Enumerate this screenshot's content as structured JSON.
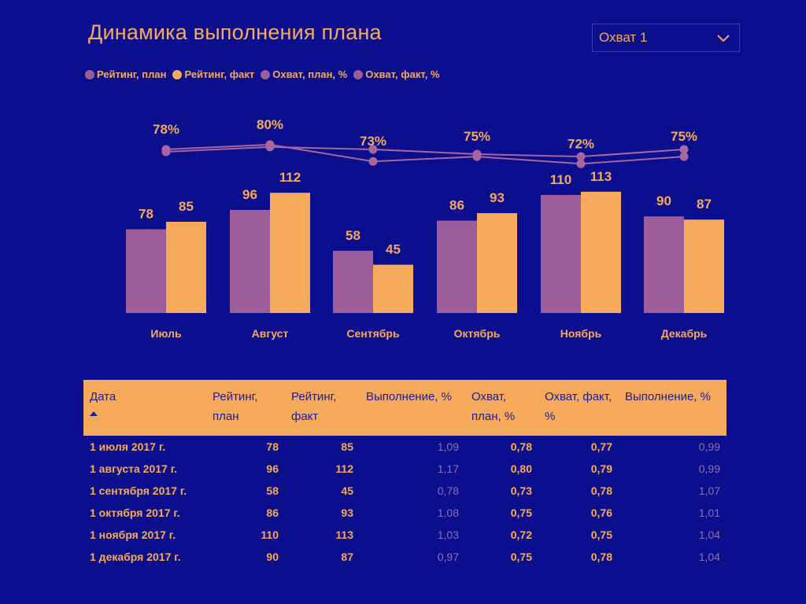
{
  "title": "Динамика выполнения плана",
  "dropdown": {
    "selected": "Охват 1"
  },
  "colors": {
    "plan": "#9c5e98",
    "fact": "#f7a95c",
    "bg": "#0b0f8e"
  },
  "legend": [
    {
      "label": "Рейтинг, план",
      "color": "#9c5e98"
    },
    {
      "label": "Рейтинг, факт",
      "color": "#f7a95c"
    },
    {
      "label": "Охват, план, %",
      "color": "#9c5e98"
    },
    {
      "label": "Охват, факт, %",
      "color": "#9c5e98"
    }
  ],
  "chart_data": {
    "type": "bar",
    "title": "Динамика выполнения плана",
    "categories": [
      "Июль",
      "Август",
      "Сентябрь",
      "Октябрь",
      "Ноябрь",
      "Декабрь"
    ],
    "series": [
      {
        "name": "Рейтинг, план",
        "values": [
          78,
          96,
          58,
          86,
          110,
          90
        ]
      },
      {
        "name": "Рейтинг, факт",
        "values": [
          85,
          112,
          45,
          93,
          113,
          87
        ]
      }
    ],
    "line_series": [
      {
        "name": "Охват, план, %",
        "values": [
          0.78,
          0.8,
          0.73,
          0.75,
          0.72,
          0.75
        ]
      },
      {
        "name": "Охват, факт, %",
        "values": [
          0.77,
          0.79,
          0.78,
          0.76,
          0.75,
          0.78
        ]
      }
    ],
    "line_labels": [
      "78%",
      "80%",
      "73%",
      "75%",
      "72%",
      "75%"
    ],
    "ylim": [
      0,
      120
    ]
  },
  "table": {
    "headers": [
      "Дата",
      "Рейтинг, план",
      "Рейтинг, факт",
      "Выполнение, %",
      "Охват, план, %",
      "Охват, факт, %",
      "Выполнение, %"
    ],
    "rows": [
      [
        "1 июля 2017 г.",
        "78",
        "85",
        "1,09",
        "0,78",
        "0,77",
        "0,99"
      ],
      [
        "1 августа 2017 г.",
        "96",
        "112",
        "1,17",
        "0,80",
        "0,79",
        "0,99"
      ],
      [
        "1 сентября 2017 г.",
        "58",
        "45",
        "0,78",
        "0,73",
        "0,78",
        "1,07"
      ],
      [
        "1 октября 2017 г.",
        "86",
        "93",
        "1,08",
        "0,75",
        "0,76",
        "1,01"
      ],
      [
        "1 ноября 2017 г.",
        "110",
        "113",
        "1,03",
        "0,72",
        "0,75",
        "1,04"
      ],
      [
        "1 декабря 2017 г.",
        "90",
        "87",
        "0,97",
        "0,75",
        "0,78",
        "1,04"
      ]
    ]
  }
}
